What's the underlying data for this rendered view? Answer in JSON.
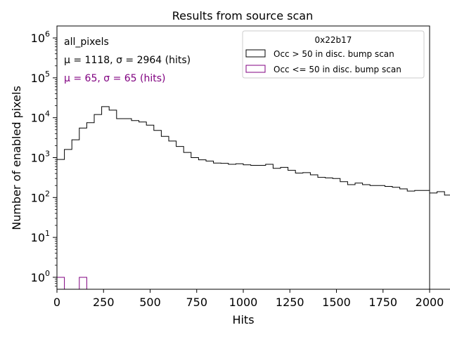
{
  "chart_data": {
    "type": "histogram",
    "title": "Results from source scan",
    "xlabel": "Hits",
    "ylabel": "Number of enabled pixels",
    "xlim": [
      0,
      2000
    ],
    "ylim_log10": [
      -0.3,
      6.3
    ],
    "yscale": "log",
    "x_ticks": [
      0,
      250,
      500,
      750,
      1000,
      1250,
      1500,
      1750,
      2000
    ],
    "x_tick_labels": [
      "0",
      "250",
      "500",
      "750",
      "1000",
      "1250",
      "1500",
      "1750",
      "2000"
    ],
    "y_tick_exponents": [
      0,
      1,
      2,
      3,
      4,
      5,
      6
    ],
    "bin_width": 40,
    "legend": {
      "title": "0x22b17",
      "placement": "top-right",
      "entries": [
        {
          "label": "Occ > 50 in disc. bump scan",
          "color": "#000000"
        },
        {
          "label": "Occ <= 50 in disc. bump scan",
          "color": "#800080"
        }
      ]
    },
    "annotations": {
      "dataset": "all_pixels",
      "stats_main": "μ = 1118, σ = 2964 (hits)",
      "stats_low": "μ = 65, σ = 65 (hits)"
    },
    "series": [
      {
        "name": "Occ > 50 in disc. bump scan",
        "color": "#000000",
        "bin_edges_start": 0,
        "values": [
          900,
          1600,
          2800,
          5500,
          7500,
          12000,
          19000,
          15500,
          9500,
          9500,
          8500,
          7800,
          6500,
          4800,
          3400,
          2600,
          1900,
          1350,
          1000,
          880,
          820,
          730,
          720,
          680,
          700,
          660,
          640,
          640,
          680,
          540,
          570,
          480,
          410,
          420,
          370,
          320,
          310,
          300,
          250,
          210,
          230,
          210,
          200,
          200,
          190,
          180,
          165,
          145,
          150,
          150,
          130,
          140,
          115,
          0.001
        ]
      },
      {
        "name": "Occ <= 50 in disc. bump scan",
        "color": "#800080",
        "bin_edges_start": 0,
        "values": [
          1,
          0,
          0,
          1
        ]
      }
    ]
  }
}
